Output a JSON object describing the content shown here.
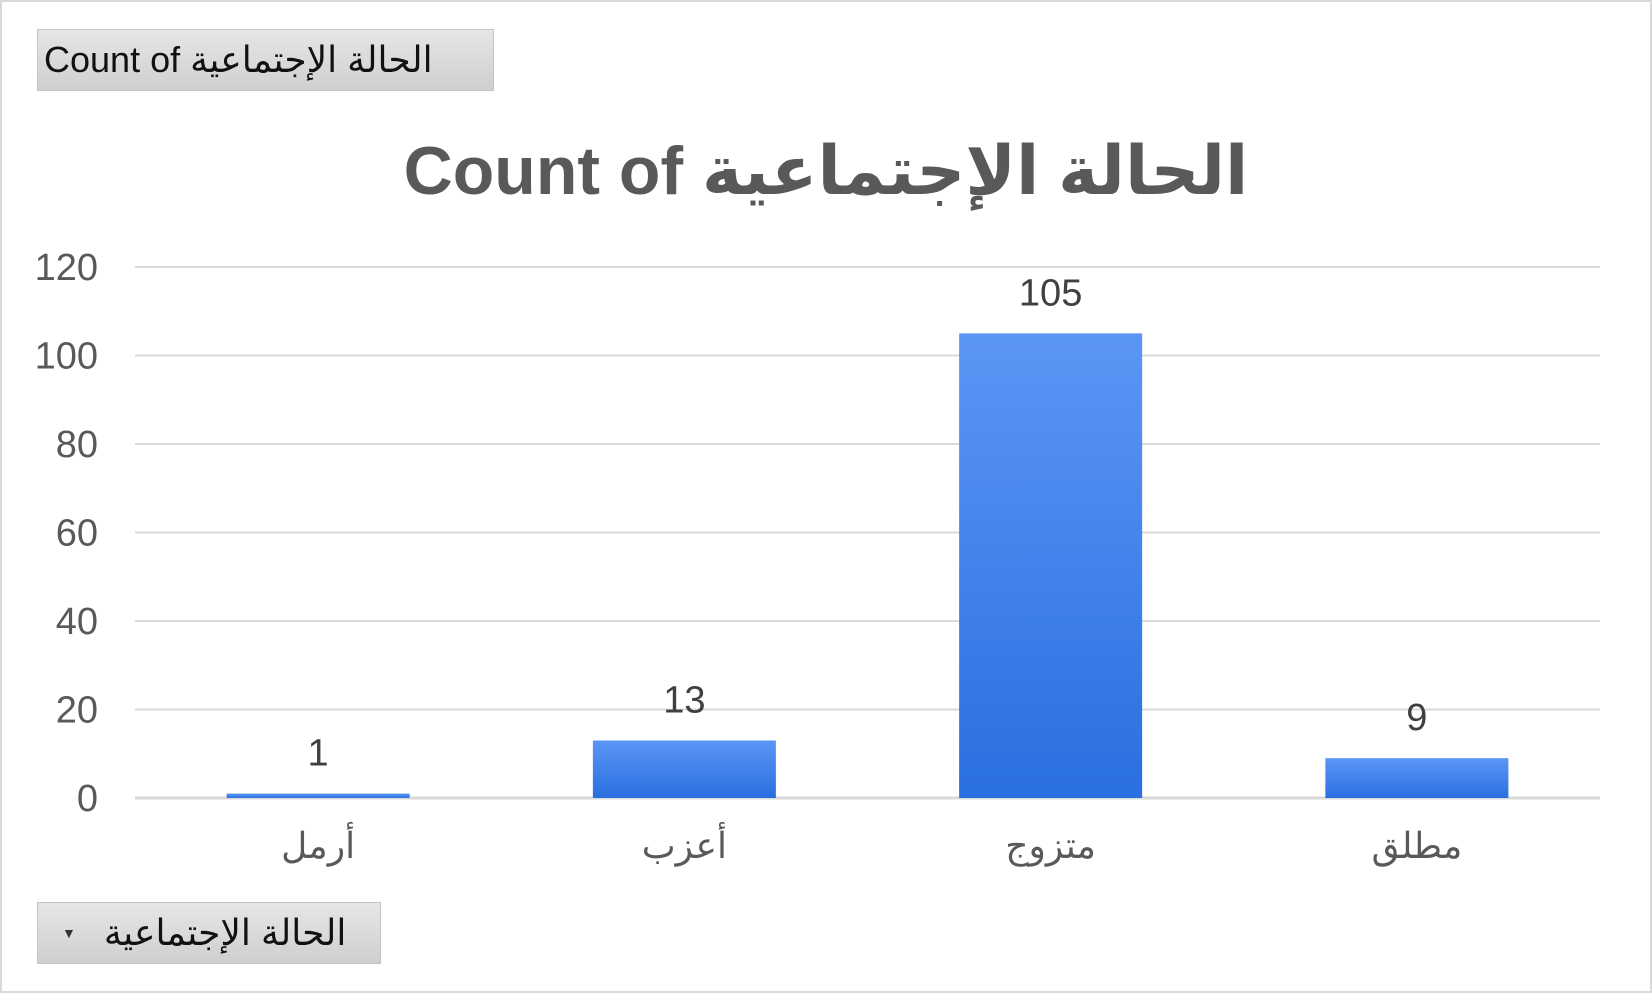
{
  "value_field": {
    "label": "Count of  الحالة الإجتماعية"
  },
  "axis_field": {
    "label": "الحالة الإجتماعية",
    "dropdown_icon": "dropdown-arrow-icon"
  },
  "colors": {
    "bar_top": "#5b96f5",
    "bar_bottom": "#2a6fe0",
    "grid": "#d9d9d9",
    "text": "#595959"
  },
  "chart_data": {
    "type": "bar",
    "title": "Count of  الحالة الإجتماعية",
    "categories": [
      "أرمل",
      "أعزب",
      "متزوج",
      "مطلق"
    ],
    "series": [
      {
        "values": [
          1,
          13,
          105,
          9
        ]
      }
    ],
    "data_labels": [
      "1",
      "13",
      "105",
      "9"
    ],
    "y_ticks": [
      0,
      20,
      40,
      60,
      80,
      100,
      120
    ],
    "ylim": [
      0,
      120
    ],
    "grid": true,
    "legend": "none"
  }
}
